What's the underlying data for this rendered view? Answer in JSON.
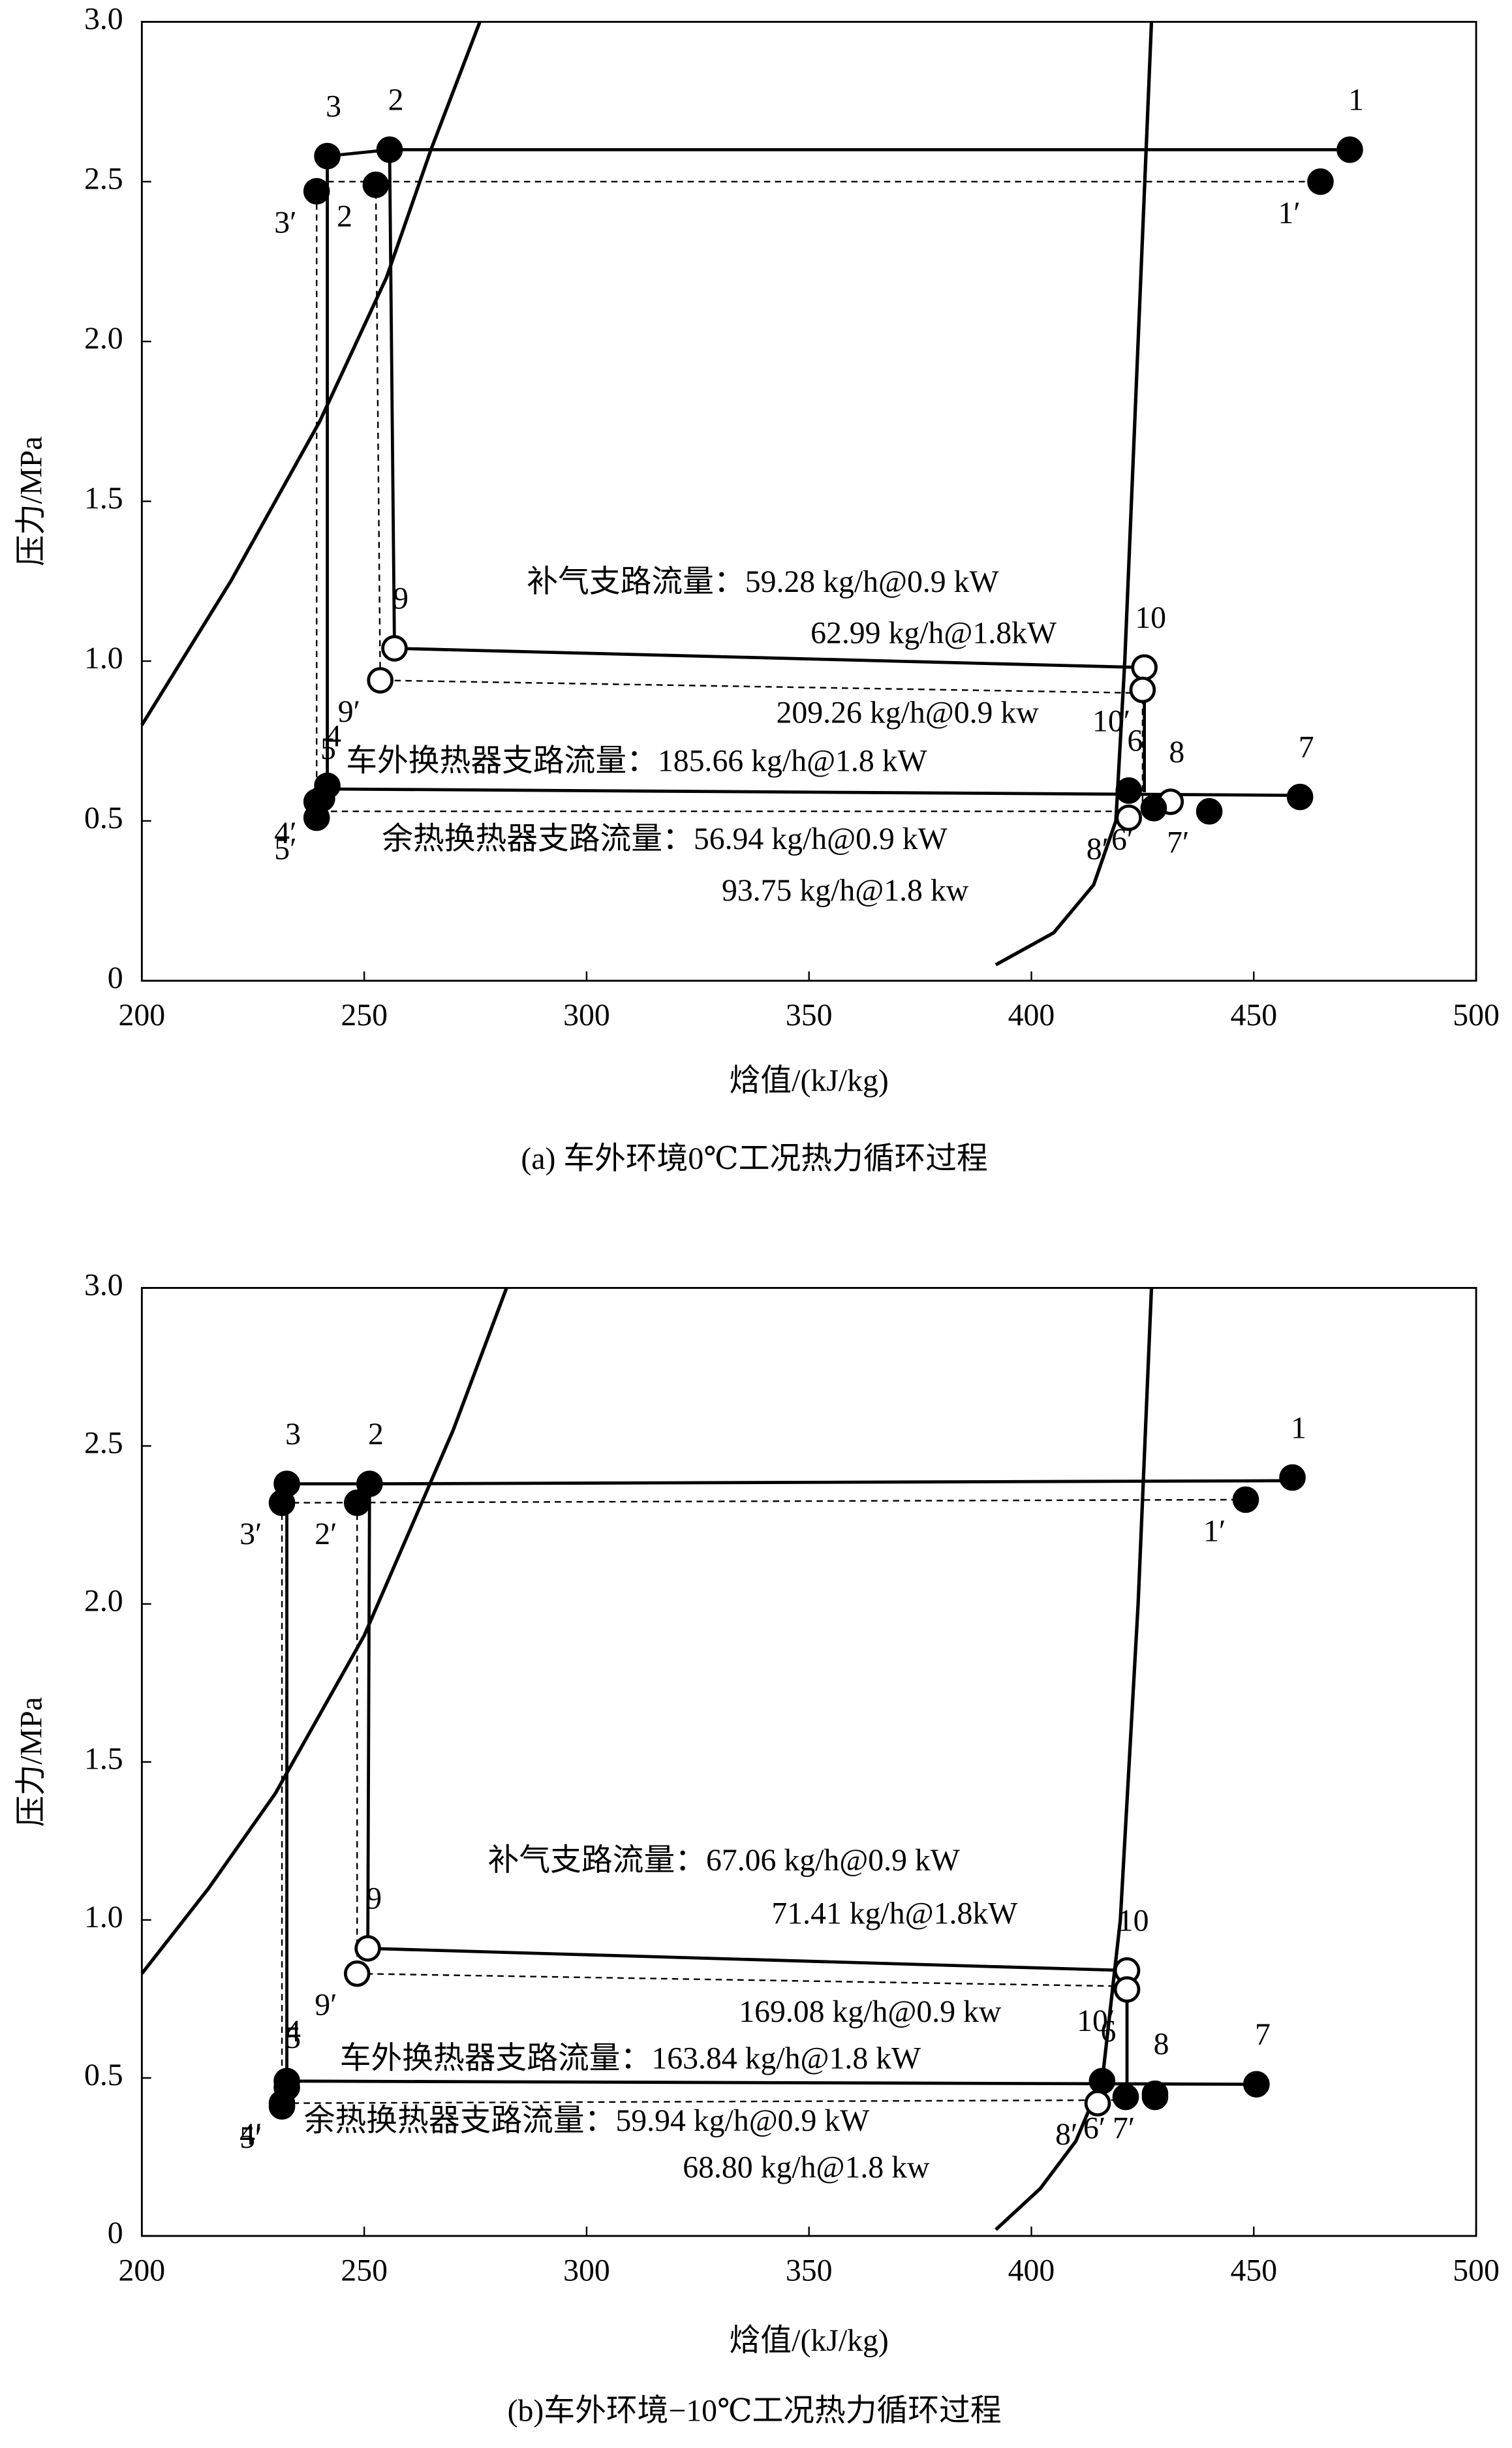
{
  "chart_data": [
    {
      "type": "scatter",
      "caption": "(a) 车外环境0℃工况热力循环过程",
      "xlabel": "焓值/(kJ/kg)",
      "ylabel": "压力/MPa",
      "xlim": [
        200,
        500
      ],
      "xticks": [
        200,
        250,
        300,
        350,
        400,
        450,
        500
      ],
      "ylim": [
        0,
        3
      ],
      "yticks": [
        0,
        0.5,
        {
          "value": 1,
          "label": "1.0"
        },
        1.5,
        {
          "value": 2,
          "label": "2.0"
        },
        2.5,
        {
          "value": 3,
          "label": "3.0"
        }
      ],
      "saturation_curves": [
        {
          "x": [
            200,
            220,
            240,
            255,
            265,
            276
          ],
          "y": [
            0.8,
            1.25,
            1.75,
            2.2,
            2.6,
            3.0
          ]
        },
        {
          "x": [
            427,
            424,
            421,
            419,
            414,
            405,
            392
          ],
          "y": [
            3.0,
            2.0,
            1.0,
            0.5,
            0.3,
            0.15,
            0.05
          ]
        }
      ],
      "lines": [
        {
          "style": "solid",
          "x": [
            241.7,
            255.7,
            471.6,
            null,
            255.7,
            256.8,
            425.4,
            425.4,
            null,
            241.7,
            241.7,
            460.4
          ],
          "y": [
            2.58,
            2.6,
            2.6,
            null,
            2.6,
            1.04,
            0.98,
            0.59,
            null,
            2.58,
            0.6,
            0.58
          ]
        },
        {
          "style": "dashed",
          "x": [
            239.3,
            465,
            null,
            239.3,
            239.3,
            421.9,
            null,
            252.6,
            253.6,
            425,
            425
          ],
          "y": [
            2.5,
            2.5,
            null,
            2.5,
            0.53,
            0.53,
            null,
            2.5,
            0.94,
            0.9,
            0.53
          ]
        }
      ],
      "series": [
        {
          "style": "solid",
          "color": "#000000",
          "labels": [
            "1",
            "2",
            "3",
            "4",
            "5",
            "6",
            "7",
            "8",
            "9",
            "10"
          ],
          "x": [
            471.6,
            255.7,
            241.7,
            241.7,
            240.5,
            421.9,
            460.4,
            431.3,
            256.8,
            425.4
          ],
          "y": [
            2.6,
            2.6,
            2.58,
            0.61,
            0.57,
            0.595,
            0.575,
            0.56,
            1.04,
            0.98
          ],
          "hollow": [
            false,
            false,
            false,
            false,
            false,
            false,
            false,
            true,
            true,
            true
          ]
        },
        {
          "style": "dashed",
          "color": "#000000",
          "labels": [
            "1′",
            "2",
            "3′",
            "4′",
            "5′",
            "6′",
            "7′",
            "8′",
            "9′",
            "10′"
          ],
          "x": [
            465,
            252.6,
            239.3,
            239.3,
            239.3,
            427.5,
            440,
            421.9,
            253.6,
            425
          ],
          "y": [
            2.5,
            2.49,
            2.47,
            0.56,
            0.51,
            0.54,
            0.53,
            0.51,
            0.94,
            0.91
          ],
          "hollow": [
            false,
            false,
            false,
            false,
            false,
            false,
            false,
            true,
            true,
            true
          ]
        }
      ],
      "annotations": [
        "补气支路流量：59.28 kg/h@0.9 kW",
        "62.99 kg/h@1.8kW",
        "209.26 kg/h@0.9 kw",
        "车外换热器支路流量：185.66 kg/h@1.8 kW",
        "余热换热器支路流量：56.94 kg/h@0.9 kW",
        "93.75 kg/h@1.8 kw"
      ]
    },
    {
      "type": "scatter",
      "caption": "(b)车外环境−10℃工况热力循环过程",
      "xlabel": "焓值/(kJ/kg)",
      "ylabel": "压力/MPa",
      "xlim": [
        200,
        500
      ],
      "xticks": [
        200,
        250,
        300,
        350,
        400,
        450,
        500
      ],
      "ylim": [
        0,
        3
      ],
      "yticks": [
        0,
        0.5,
        {
          "value": 1,
          "label": "1.0"
        },
        1.5,
        {
          "value": 2,
          "label": "2.0"
        },
        2.5,
        {
          "value": 3,
          "label": "3.0"
        }
      ],
      "saturation_curves": [
        {
          "x": [
            200,
            215,
            230,
            250,
            270,
            282
          ],
          "y": [
            0.83,
            1.1,
            1.4,
            1.9,
            2.55,
            3.0
          ]
        },
        {
          "x": [
            427,
            424,
            420,
            416,
            410,
            402,
            392
          ],
          "y": [
            3.0,
            2.0,
            1.0,
            0.5,
            0.3,
            0.15,
            0.02
          ]
        }
      ],
      "lines": [
        {
          "style": "solid",
          "x": [
            232.6,
            251.2,
            458.7,
            null,
            251.2,
            250.8,
            421.5,
            421.5,
            null,
            232.6,
            232.6,
            450.6
          ],
          "y": [
            2.38,
            2.38,
            2.39,
            null,
            2.38,
            0.91,
            0.84,
            0.48,
            null,
            2.38,
            0.49,
            0.48
          ]
        },
        {
          "style": "dashed",
          "x": [
            231.5,
            448.2,
            null,
            231.5,
            231.5,
            421.2,
            null,
            248.4,
            248.4,
            421.5,
            421.5
          ],
          "y": [
            2.32,
            2.33,
            null,
            2.32,
            0.42,
            0.43,
            null,
            2.32,
            0.83,
            0.79,
            0.43
          ]
        }
      ],
      "series": [
        {
          "style": "solid",
          "color": "#000000",
          "labels": [
            "1",
            "2",
            "3",
            "4",
            "5",
            "6",
            "7",
            "8",
            "9",
            "10"
          ],
          "x": [
            458.7,
            251.2,
            232.6,
            232.6,
            232.6,
            415.9,
            450.6,
            427.8,
            250.8,
            421.5
          ],
          "y": [
            2.4,
            2.38,
            2.38,
            0.49,
            0.47,
            0.49,
            0.48,
            0.45,
            0.91,
            0.84
          ],
          "hollow": [
            false,
            false,
            false,
            false,
            false,
            false,
            false,
            false,
            true,
            true
          ]
        },
        {
          "style": "dashed",
          "color": "#000000",
          "labels": [
            "1′",
            "2′",
            "3′",
            "4′",
            "5′",
            "6′",
            "7′",
            "8′",
            "9′",
            "10′"
          ],
          "x": [
            448.2,
            248.4,
            231.5,
            231.5,
            231.5,
            421.2,
            427.8,
            414.9,
            248.4,
            421.5
          ],
          "y": [
            2.33,
            2.32,
            2.32,
            0.42,
            0.41,
            0.44,
            0.44,
            0.42,
            0.83,
            0.78
          ],
          "hollow": [
            false,
            false,
            false,
            false,
            false,
            false,
            false,
            true,
            true,
            true
          ]
        }
      ],
      "annotations": [
        "补气支路流量：67.06 kg/h@0.9 kW",
        "71.41 kg/h@1.8kW",
        "169.08 kg/h@0.9 kw",
        "车外换热器支路流量：163.84 kg/h@1.8 kW",
        "余热换热器支路流量：59.94 kg/h@0.9 kW",
        "68.80 kg/h@1.8 kw"
      ]
    }
  ]
}
